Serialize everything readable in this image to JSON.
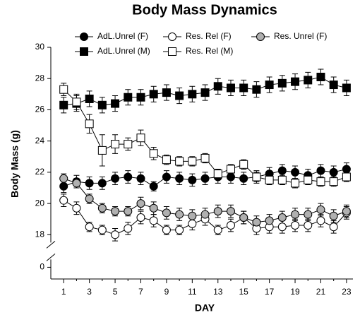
{
  "chart_data": {
    "type": "line",
    "title": "Body Mass Dynamics",
    "xlabel": "DAY",
    "ylabel": "Body Mass (g)",
    "x": [
      1,
      2,
      3,
      4,
      5,
      6,
      7,
      8,
      9,
      10,
      11,
      12,
      13,
      14,
      15,
      16,
      17,
      18,
      19,
      20,
      21,
      22,
      23
    ],
    "xlim": [
      0,
      23.5
    ],
    "xticks": [
      1,
      3,
      5,
      7,
      9,
      11,
      13,
      15,
      17,
      19,
      21,
      23
    ],
    "xticks_minor": [
      2,
      4,
      6,
      8,
      10,
      12,
      14,
      16,
      18,
      20,
      22
    ],
    "ylim": [
      -0.75,
      30
    ],
    "y_break": [
      0.5,
      17.5
    ],
    "yticks": [
      0,
      18,
      20,
      22,
      24,
      26,
      28,
      30
    ],
    "line_color": "#000000",
    "series": [
      {
        "name": "AdL.Unrel (F)",
        "marker": "circle",
        "color": "#000000",
        "values": [
          21.1,
          21.4,
          21.3,
          21.3,
          21.6,
          21.7,
          21.6,
          21.1,
          21.7,
          21.6,
          21.5,
          21.6,
          21.7,
          21.7,
          21.6,
          21.7,
          21.9,
          22.1,
          22.0,
          21.8,
          22.1,
          22.0,
          22.2
        ],
        "errors": [
          0.4,
          0.4,
          0.4,
          0.4,
          0.4,
          0.4,
          0.4,
          0.3,
          0.4,
          0.4,
          0.4,
          0.4,
          0.4,
          0.4,
          0.4,
          0.4,
          0.4,
          0.4,
          0.4,
          0.4,
          0.4,
          0.4,
          0.4
        ]
      },
      {
        "name": "Res. Rel (F)",
        "marker": "circle",
        "color": "#ffffff",
        "values": [
          20.2,
          19.7,
          18.5,
          18.3,
          18.0,
          18.4,
          19.1,
          18.9,
          18.3,
          18.3,
          18.7,
          19.0,
          18.3,
          18.6,
          19.1,
          18.4,
          18.5,
          18.5,
          18.6,
          18.6,
          18.9,
          18.5,
          19.4
        ],
        "errors": [
          0.4,
          0.4,
          0.3,
          0.3,
          0.4,
          0.4,
          0.4,
          0.4,
          0.3,
          0.3,
          0.4,
          0.4,
          0.3,
          0.4,
          0.4,
          0.4,
          0.4,
          0.4,
          0.4,
          0.4,
          0.4,
          0.4,
          0.4
        ]
      },
      {
        "name": "Res. Unrel (F)",
        "marker": "circle",
        "color": "#b0b0b0",
        "values": [
          21.6,
          21.3,
          20.3,
          19.7,
          19.5,
          19.5,
          20.0,
          19.7,
          19.4,
          19.3,
          19.2,
          19.3,
          19.5,
          19.5,
          19.1,
          18.8,
          18.9,
          19.1,
          19.3,
          19.3,
          19.6,
          19.2,
          19.5
        ],
        "errors": [
          0.3,
          0.3,
          0.3,
          0.3,
          0.3,
          0.3,
          0.4,
          0.4,
          0.4,
          0.4,
          0.4,
          0.4,
          0.4,
          0.4,
          0.4,
          0.4,
          0.4,
          0.4,
          0.4,
          0.4,
          0.4,
          0.4,
          0.4
        ]
      },
      {
        "name": "AdL.Unrel (M)",
        "marker": "square",
        "color": "#000000",
        "values": [
          26.3,
          26.4,
          26.7,
          26.3,
          26.4,
          26.8,
          26.8,
          27.0,
          27.1,
          26.9,
          27.0,
          27.1,
          27.5,
          27.4,
          27.4,
          27.3,
          27.6,
          27.7,
          27.8,
          27.9,
          28.1,
          27.6,
          27.4
        ],
        "errors": [
          0.5,
          0.5,
          0.5,
          0.5,
          0.5,
          0.5,
          0.5,
          0.5,
          0.5,
          0.5,
          0.5,
          0.5,
          0.5,
          0.5,
          0.5,
          0.5,
          0.5,
          0.5,
          0.5,
          0.5,
          0.5,
          0.5,
          0.5
        ]
      },
      {
        "name": "Res. Rel (M)",
        "marker": "square",
        "color": "#ffffff",
        "values": [
          27.3,
          26.5,
          25.1,
          23.4,
          23.8,
          23.8,
          24.2,
          23.2,
          22.8,
          22.7,
          22.7,
          22.9,
          21.9,
          22.2,
          22.5,
          21.7,
          21.5,
          21.5,
          21.3,
          21.5,
          21.4,
          21.4,
          21.7
        ],
        "errors": [
          0.4,
          0.5,
          0.6,
          1.0,
          0.6,
          0.4,
          0.5,
          0.4,
          0.3,
          0.3,
          0.3,
          0.3,
          0.3,
          0.3,
          0.3,
          0.3,
          0.3,
          0.3,
          0.3,
          0.3,
          0.3,
          0.3,
          0.3
        ]
      }
    ]
  }
}
